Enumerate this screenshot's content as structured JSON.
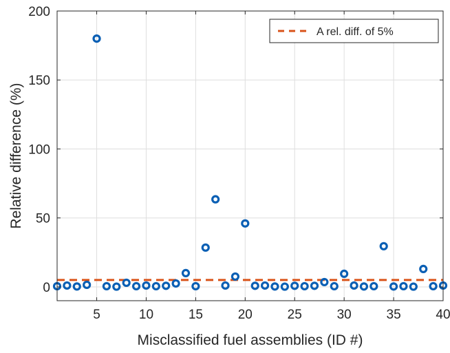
{
  "chart_data": {
    "type": "scatter",
    "xlabel": "Misclassified fuel assemblies (ID #)",
    "ylabel": "Relative difference (%)",
    "xlim": [
      1,
      40
    ],
    "ylim": [
      -10,
      200
    ],
    "xticks": [
      5,
      10,
      15,
      20,
      25,
      30,
      35,
      40
    ],
    "yticks": [
      0,
      50,
      100,
      150,
      200
    ],
    "grid": true,
    "legend_position": "top-right",
    "series": [
      {
        "kind": "points",
        "color": "#0a5fb4",
        "x": [
          1,
          2,
          3,
          4,
          5,
          6,
          7,
          8,
          9,
          10,
          11,
          12,
          13,
          14,
          15,
          16,
          17,
          18,
          19,
          20,
          21,
          22,
          23,
          24,
          25,
          26,
          27,
          28,
          29,
          30,
          31,
          32,
          33,
          34,
          35,
          36,
          37,
          38,
          39,
          40
        ],
        "values": [
          0.5,
          1.0,
          0.3,
          1.5,
          180,
          0.5,
          0.2,
          3.0,
          0.5,
          1.0,
          0.5,
          0.8,
          2.5,
          10,
          0.5,
          28.5,
          63.5,
          1.0,
          7.5,
          46,
          0.8,
          1.0,
          0.3,
          0.2,
          0.8,
          0.5,
          0.8,
          3.5,
          0.5,
          9.5,
          1.0,
          0.3,
          0.5,
          29.5,
          0.3,
          0.5,
          0.2,
          13,
          0.5,
          1.0
        ]
      },
      {
        "kind": "reference-line",
        "name": "A rel. diff. of 5%",
        "color": "#d95319",
        "value": 5
      }
    ]
  }
}
